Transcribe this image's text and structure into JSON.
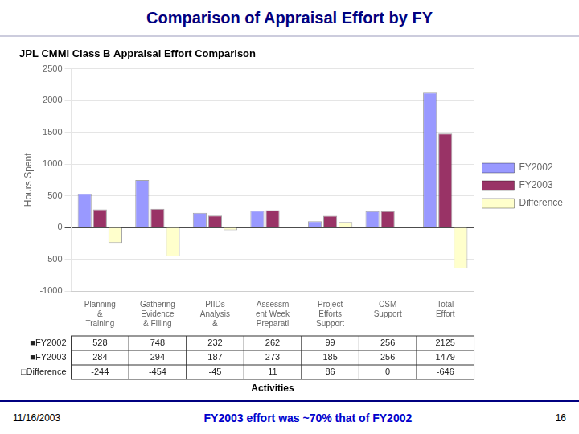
{
  "chart_data": {
    "type": "bar",
    "title": "JPL CMMI Class B Appraisal Effort Comparison",
    "x_label": "Activities",
    "y_label": "Hours Spent",
    "categories": [
      "Planning\n&\nTraining",
      "Gathering\nEvidence\n& Filling",
      "PIIDs\nAnalysis\n&",
      "Assessm\nent Week\nPreparati",
      "Project\nEfforts\nSupport",
      "CSM\nSupport",
      "Total\nEffort"
    ],
    "series": [
      {
        "name": "FY2002",
        "color": "#9999FF",
        "values": [
          528,
          748,
          232,
          262,
          99,
          256,
          2125
        ]
      },
      {
        "name": "FY2003",
        "color": "#993366",
        "values": [
          284,
          294,
          187,
          273,
          185,
          256,
          1479
        ]
      },
      {
        "name": "Difference",
        "color": "#FFFFCC",
        "values": [
          -244,
          -454,
          -45,
          11,
          86,
          0,
          -646
        ]
      }
    ],
    "ylim": [
      -1000,
      2500
    ],
    "yticks": [
      -1000,
      -500,
      0,
      500,
      1000,
      1500,
      2000,
      2500
    ],
    "grid": true,
    "legend": "right",
    "table": {
      "row_labels": [
        "■FY2002",
        "■FY2003",
        "□Difference"
      ]
    },
    "annotations": [
      {
        "text": "Comparison of Appraisal Effort by FY",
        "color": "#000080"
      },
      {
        "text": "11/16/2003"
      },
      {
        "text": "FY2003 effort was ~70% that of FY2002",
        "color": "#0000CC"
      },
      {
        "text": "16"
      }
    ]
  }
}
